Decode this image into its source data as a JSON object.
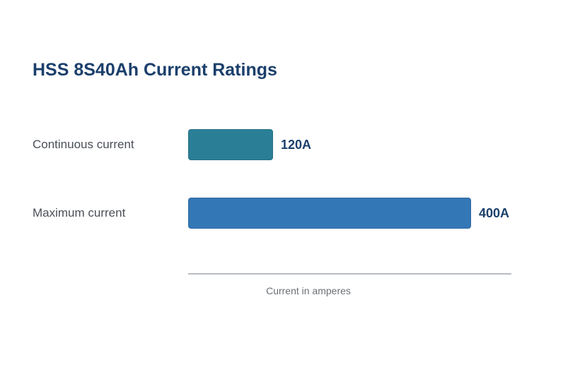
{
  "chart_data": {
    "type": "bar",
    "orientation": "horizontal",
    "title": "HSS 8S40Ah Current Ratings",
    "categories": [
      "Continuous current",
      "Maximum current"
    ],
    "values": [
      120,
      400
    ],
    "value_labels": [
      "120A",
      "400A"
    ],
    "colors": [
      "#2a7f97",
      "#3477b6"
    ],
    "border_colors": [
      "#256f85",
      "#2d69a3"
    ],
    "xlabel": "Current in amperes",
    "ylabel": "",
    "xlim": [
      0,
      457
    ],
    "grid": false,
    "legend": "none"
  }
}
